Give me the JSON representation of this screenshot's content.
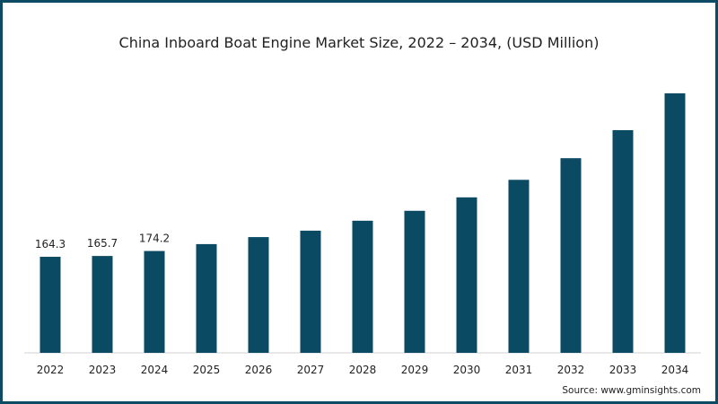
{
  "chart_data": {
    "type": "bar",
    "title": "China Inboard Boat Engine Market Size, 2022 – 2034, (USD Million)",
    "categories": [
      "2022",
      "2023",
      "2024",
      "2025",
      "2026",
      "2027",
      "2028",
      "2029",
      "2030",
      "2031",
      "2032",
      "2033",
      "2034"
    ],
    "values": [
      164.3,
      165.7,
      174.2,
      186,
      198,
      209,
      226,
      243,
      266,
      296,
      333,
      381,
      444
    ],
    "data_labels": [
      "164.3",
      "165.7",
      "174.2",
      "",
      "",
      "",
      "",
      "",
      "",
      "",
      "",
      "",
      ""
    ],
    "xlabel": "",
    "ylabel": "",
    "ylim": [
      0,
      470
    ],
    "grid": false,
    "bar_color": "#0b4a63",
    "source": "Source: www.gminsights.com"
  }
}
